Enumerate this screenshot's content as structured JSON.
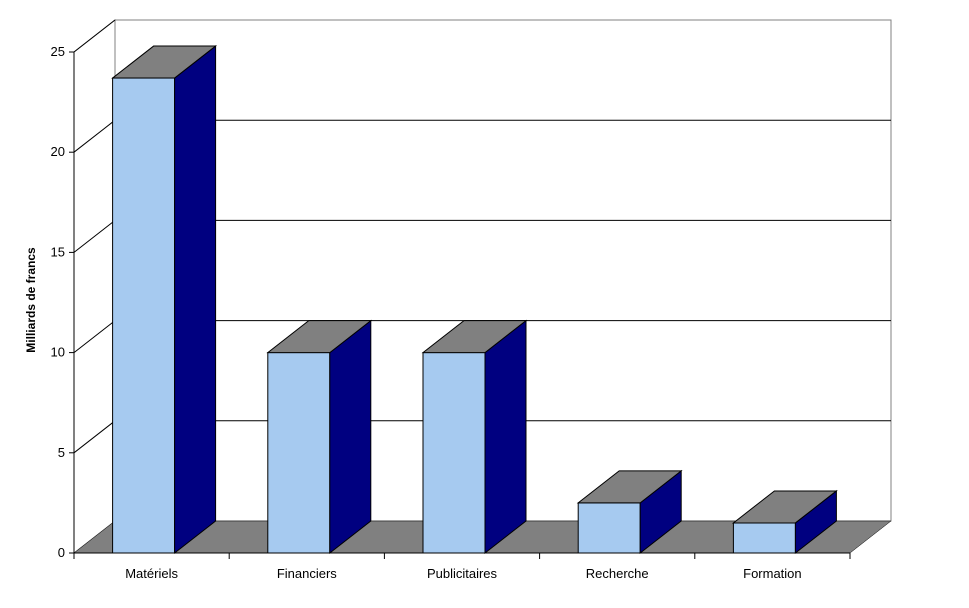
{
  "chart_data": {
    "type": "bar",
    "title": "",
    "xlabel": "",
    "ylabel": "Milliards de francs",
    "categories": [
      "Matériels",
      "Financiers",
      "Publicitaires",
      "Recherche",
      "Formation"
    ],
    "values": [
      23.7,
      10.0,
      10.0,
      2.5,
      1.5
    ],
    "ylim": [
      0,
      25
    ],
    "yticks": [
      0,
      5,
      10,
      15,
      20,
      25
    ],
    "grid": true,
    "legend": "none",
    "colors": {
      "bar_front": "#A6CAF0",
      "bar_side": "#000080",
      "bar_top": "#808080",
      "floor": "#808080",
      "gridline": "#000000",
      "axis": "#808080"
    }
  }
}
